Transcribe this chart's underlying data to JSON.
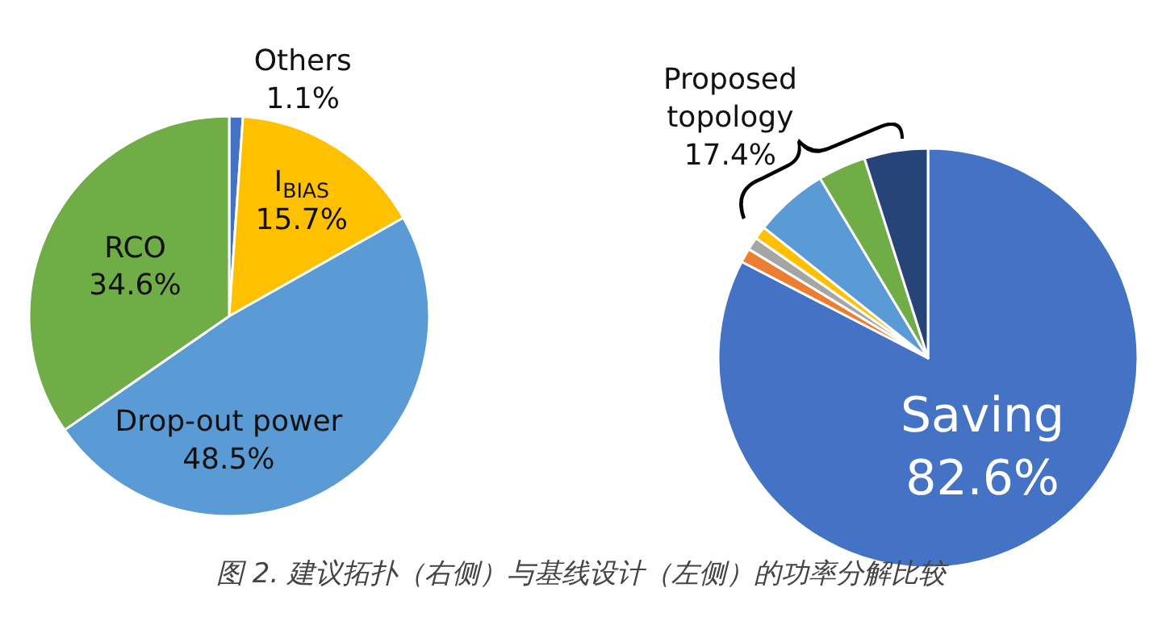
{
  "chart_data": [
    {
      "type": "pie",
      "categories": [
        "Others",
        "I$_{BIAS}$",
        "Drop-out power",
        "RCO"
      ],
      "values": [
        1.1,
        15.7,
        48.5,
        34.6
      ],
      "colors": [
        "#4472c4",
        "#ffc000",
        "#5b9bd5",
        "#70ad47"
      ],
      "value_labels": [
        "1.1%",
        "15.7%",
        "48.5%",
        "34.6%"
      ],
      "annotations": [
        "图 2. 建议拓扑（右侧）与基线设计（左侧）的功率分解比较"
      ]
    },
    {
      "type": "pie",
      "categories": [
        "Saving",
        null,
        null,
        null,
        null,
        null,
        null
      ],
      "values": [
        82.6,
        1.1,
        1.0,
        1.0,
        5.7,
        3.7,
        4.9
      ],
      "colors": [
        "#4472c4",
        "#ed7d31",
        "#a5a5a5",
        "#ffc000",
        "#5b9bd5",
        "#70ad47",
        "#264478"
      ],
      "value_labels": [
        "82.6%",
        null,
        null,
        null,
        null,
        null,
        null
      ],
      "annotations": [
        "Proposed\ntopology\n17.4%"
      ]
    }
  ]
}
